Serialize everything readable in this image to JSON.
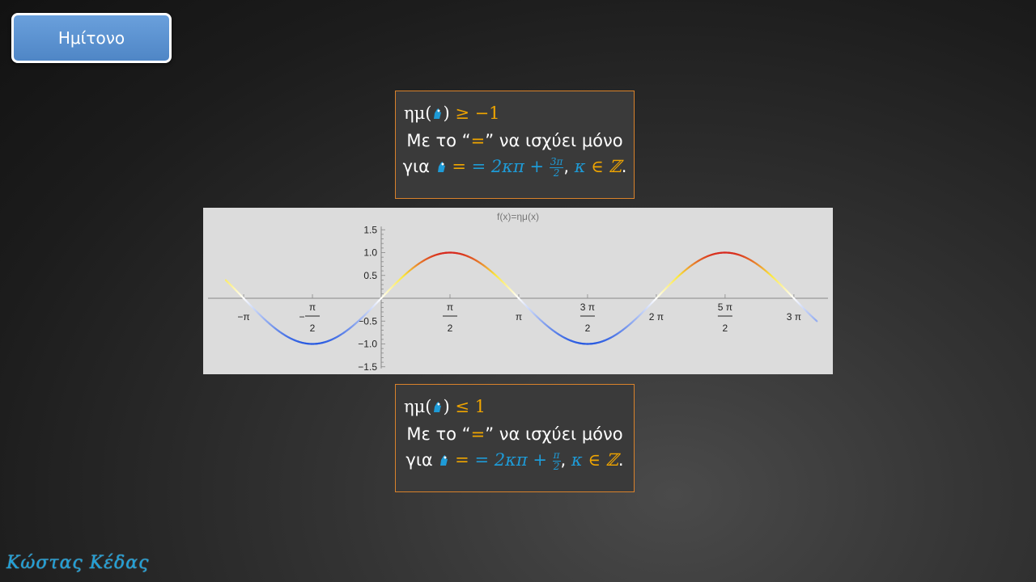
{
  "title_button": "Ημίτονο",
  "box_top": {
    "func": "ημ",
    "relation": "≥ −1",
    "line2_prefix": "Με το “",
    "line2_eq": "=",
    "line2_suffix": "” να ισχύει μόνο",
    "line3_prefix": "για",
    "line3_expr": "= 2κπ +",
    "frac_num": "3π",
    "frac_den": "2",
    "kappa": "κ",
    "in_Z": "∈ ℤ",
    "end": "."
  },
  "box_bottom": {
    "func": "ημ",
    "relation": "≤ 1",
    "line2_prefix": "Με το “",
    "line2_eq": "=",
    "line2_suffix": "” να ισχύει μόνο",
    "line3_prefix": "για",
    "line3_expr": "= 2κπ +",
    "frac_num": "π",
    "frac_den": "2",
    "kappa": "κ",
    "in_Z": "∈ ℤ",
    "end": "."
  },
  "signature": "Κώστας Κέδας",
  "colors": {
    "accent_orange": "#f0a500",
    "accent_blue": "#1e9bd7",
    "box_border": "#d9822b",
    "curve_high": "#e03020",
    "curve_mid": "#ffffff",
    "curve_low": "#3060e0"
  },
  "chart_data": {
    "type": "line",
    "title": "f(x)=ημ(x)",
    "function": "sin",
    "xlim": [
      -3.4,
      10.0
    ],
    "ylim": [
      -1.5,
      1.5
    ],
    "curve_x_range": [
      -3.55,
      9.95
    ],
    "y_ticks": [
      {
        "value": 1.5,
        "label": "1.5"
      },
      {
        "value": 1.0,
        "label": "1.0"
      },
      {
        "value": 0.5,
        "label": "0.5"
      },
      {
        "value": -0.5,
        "label": "−0.5"
      },
      {
        "value": -1.0,
        "label": "−1.0"
      },
      {
        "value": -1.5,
        "label": "−1.5"
      }
    ],
    "x_ticks": [
      {
        "value": -3.14159,
        "label": "−π"
      },
      {
        "value": -1.5708,
        "sign": "−",
        "num": "π",
        "den": "2"
      },
      {
        "value": 1.5708,
        "num": "π",
        "den": "2"
      },
      {
        "value": 3.14159,
        "label": "π"
      },
      {
        "value": 4.71239,
        "num": "3 π",
        "den": "2"
      },
      {
        "value": 6.28319,
        "label": "2 π"
      },
      {
        "value": 7.85398,
        "num": "5 π",
        "den": "2"
      },
      {
        "value": 9.42478,
        "label": "3 π"
      }
    ],
    "grid": false,
    "color_gradient": "value-based: red (1) → yellow → white (0) → blue (−1)"
  }
}
